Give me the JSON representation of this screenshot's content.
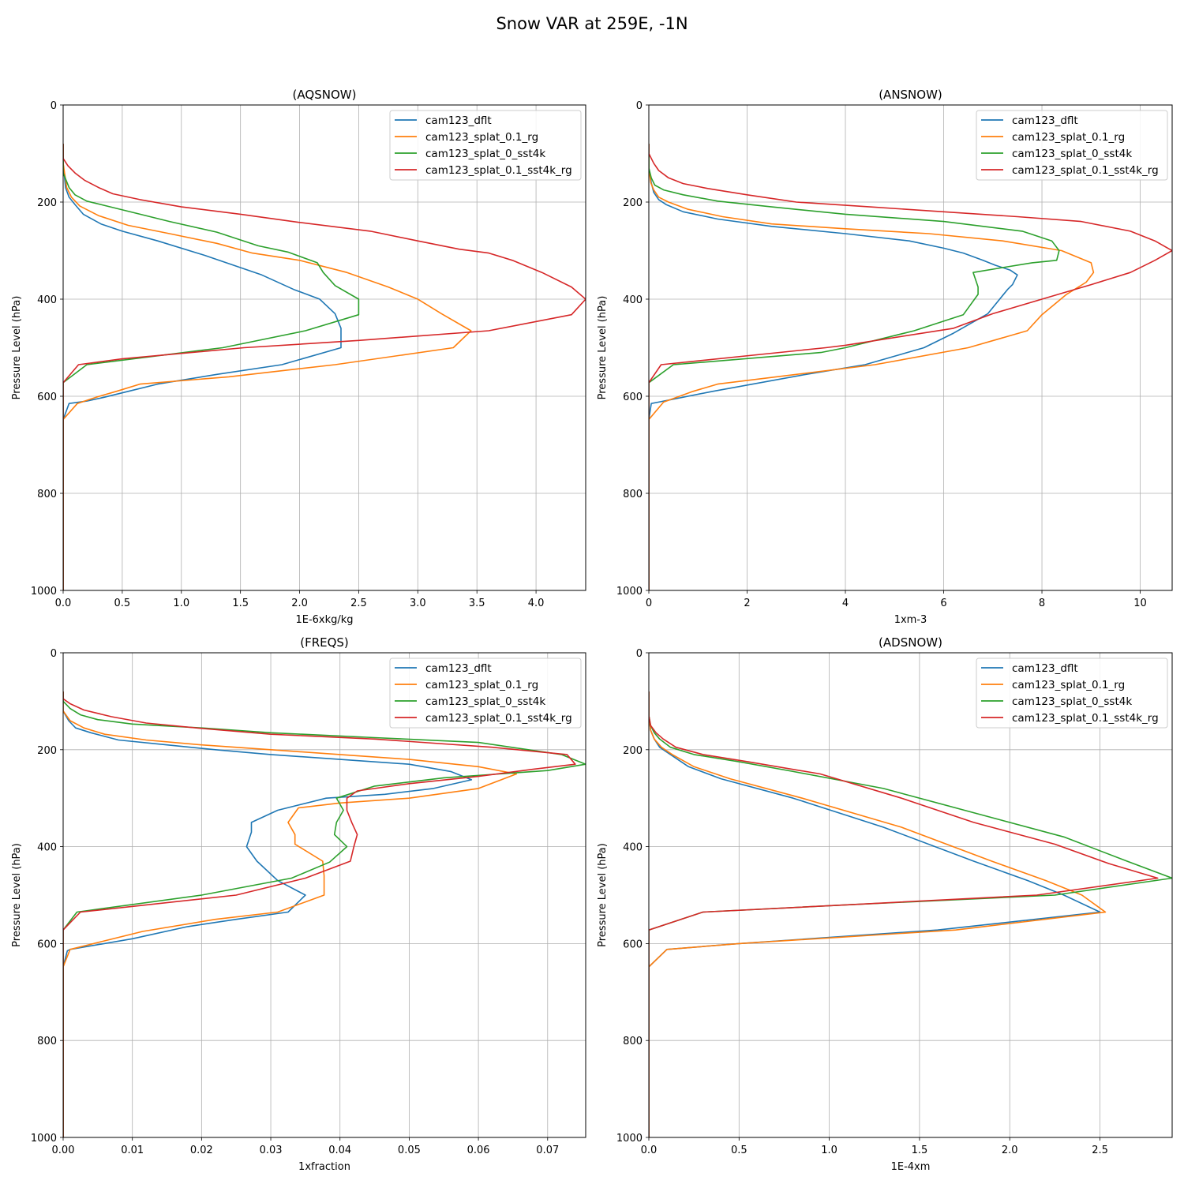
{
  "figure": {
    "title": "Snow VAR at 259E, -1N"
  },
  "chart_data": [
    {
      "type": "line",
      "title": "(AQSNOW)",
      "xlabel": "1E-6xkg/kg",
      "ylabel": "Pressure Level (hPa)",
      "xlim": [
        0,
        4.42
      ],
      "ylim": [
        1000,
        0
      ],
      "y_inverted": true,
      "xticks": [
        "0.0",
        "0.5",
        "1.0",
        "1.5",
        "2.0",
        "2.5",
        "3.0",
        "3.5",
        "4.0"
      ],
      "yticks": [
        "0",
        "200",
        "400",
        "600",
        "800",
        "1000"
      ],
      "grid": true,
      "legend": "top-right",
      "series": [
        {
          "name": "cam123_dflt",
          "color": "#1f77b4",
          "x": [
            0,
            0,
            0.02,
            0.05,
            0.1,
            0.17,
            0.32,
            0.5,
            0.8,
            1.2,
            1.68,
            1.95,
            2.17,
            2.3,
            2.35,
            2.35,
            2.35,
            1.85,
            1.3,
            0.8,
            0.55,
            0.35,
            0.2,
            0.05,
            0,
            0
          ],
          "y": [
            80,
            120,
            170,
            190,
            205,
            225,
            245,
            260,
            280,
            310,
            350,
            380,
            400,
            430,
            460,
            480,
            500,
            535,
            555,
            575,
            590,
            602,
            610,
            615,
            648,
            1000
          ]
        },
        {
          "name": "cam123_splat_0.1_rg",
          "color": "#ff7f0e",
          "x": [
            0,
            0,
            0.03,
            0.07,
            0.14,
            0.3,
            0.55,
            0.9,
            1.3,
            1.6,
            2.0,
            2.4,
            2.75,
            3.0,
            3.2,
            3.45,
            3.3,
            2.3,
            1.4,
            0.65,
            0.45,
            0.28,
            0.12,
            0,
            0
          ],
          "y": [
            80,
            120,
            170,
            190,
            208,
            228,
            248,
            265,
            285,
            305,
            320,
            345,
            375,
            400,
            430,
            465,
            500,
            535,
            560,
            575,
            590,
            602,
            615,
            648,
            1000
          ]
        },
        {
          "name": "cam123_splat_0_sst4k",
          "color": "#2ca02c",
          "x": [
            0,
            0,
            0.05,
            0.1,
            0.2,
            0.4,
            0.6,
            0.9,
            1.3,
            1.65,
            1.9,
            2.15,
            2.2,
            2.3,
            2.5,
            2.5,
            2.05,
            1.35,
            0.95,
            0.2,
            0,
            0
          ],
          "y": [
            80,
            140,
            170,
            185,
            198,
            210,
            222,
            240,
            262,
            290,
            303,
            325,
            345,
            372,
            400,
            432,
            465,
            500,
            512,
            535,
            572,
            1000
          ]
        },
        {
          "name": "cam123_splat_0.1_sst4k_rg",
          "color": "#d62728",
          "x": [
            0,
            0,
            0.04,
            0.1,
            0.18,
            0.3,
            0.42,
            0.65,
            1.0,
            1.5,
            2.0,
            2.6,
            3.0,
            3.35,
            3.6,
            3.8,
            4.05,
            4.3,
            4.42,
            4.3,
            3.6,
            2.5,
            1.53,
            0.5,
            0.13,
            0,
            0
          ],
          "y": [
            80,
            110,
            125,
            140,
            155,
            170,
            183,
            195,
            210,
            225,
            242,
            260,
            280,
            297,
            305,
            320,
            345,
            375,
            400,
            432,
            465,
            485,
            500,
            523,
            535,
            572,
            1000
          ]
        }
      ]
    },
    {
      "type": "line",
      "title": "(ANSNOW)",
      "xlabel": "1xm-3",
      "ylabel": "Pressure Level (hPa)",
      "xlim": [
        0,
        10.65
      ],
      "ylim": [
        1000,
        0
      ],
      "y_inverted": true,
      "xticks": [
        "0",
        "2",
        "4",
        "6",
        "8",
        "10"
      ],
      "yticks": [
        "0",
        "200",
        "400",
        "600",
        "800",
        "1000"
      ],
      "grid": true,
      "legend": "top-right",
      "series": [
        {
          "name": "cam123_dflt",
          "color": "#1f77b4",
          "x": [
            0,
            0,
            0.05,
            0.1,
            0.2,
            0.35,
            0.7,
            1.4,
            2.5,
            4.0,
            5.3,
            6.0,
            6.4,
            6.8,
            7.05,
            7.35,
            7.5,
            7.4,
            7.3,
            6.9,
            6.2,
            5.6,
            4.4,
            3.2,
            1.3,
            0.2,
            0.05,
            0,
            0
          ],
          "y": [
            80,
            130,
            160,
            180,
            195,
            205,
            220,
            235,
            250,
            265,
            280,
            295,
            305,
            320,
            330,
            340,
            350,
            370,
            380,
            430,
            470,
            500,
            535,
            555,
            590,
            612,
            615,
            648,
            1000
          ]
        },
        {
          "name": "cam123_splat_0.1_rg",
          "color": "#ff7f0e",
          "x": [
            0,
            0,
            0.04,
            0.1,
            0.2,
            0.4,
            0.8,
            1.5,
            2.5,
            4.0,
            5.7,
            7.2,
            8.4,
            9.0,
            9.05,
            8.9,
            8.5,
            8.0,
            7.7,
            6.5,
            4.6,
            1.4,
            0.9,
            0.3,
            0,
            0
          ],
          "y": [
            80,
            130,
            160,
            175,
            190,
            200,
            215,
            230,
            245,
            255,
            265,
            280,
            300,
            325,
            345,
            365,
            390,
            432,
            465,
            500,
            535,
            575,
            590,
            612,
            648,
            1000
          ]
        },
        {
          "name": "cam123_splat_0_sst4k",
          "color": "#2ca02c",
          "x": [
            0,
            0,
            0.05,
            0.12,
            0.3,
            0.7,
            1.4,
            2.5,
            4.0,
            6.0,
            7.6,
            8.2,
            8.35,
            8.3,
            7.8,
            7.2,
            6.6,
            6.7,
            6.7,
            6.4,
            5.4,
            4.0,
            3.5,
            0.5,
            0,
            0
          ],
          "y": [
            80,
            130,
            150,
            165,
            175,
            185,
            198,
            210,
            225,
            240,
            260,
            280,
            300,
            320,
            325,
            335,
            345,
            375,
            390,
            432,
            465,
            500,
            510,
            535,
            572,
            1000
          ]
        },
        {
          "name": "cam123_splat_0.1_sst4k_rg",
          "color": "#d62728",
          "x": [
            0,
            0,
            0.1,
            0.2,
            0.4,
            0.7,
            1.2,
            2.0,
            3.0,
            4.5,
            6.0,
            7.5,
            8.8,
            9.8,
            10.3,
            10.65,
            10.3,
            9.8,
            9.0,
            8.0,
            7.0,
            6.2,
            4.0,
            3.6,
            0.25,
            0,
            0
          ],
          "y": [
            80,
            100,
            120,
            135,
            150,
            162,
            172,
            185,
            200,
            210,
            220,
            230,
            240,
            260,
            280,
            300,
            320,
            345,
            370,
            400,
            430,
            460,
            495,
            500,
            535,
            572,
            1000
          ]
        }
      ]
    },
    {
      "type": "line",
      "title": "(FREQS)",
      "xlabel": "1xfraction",
      "ylabel": "Pressure Level (hPa)",
      "xlim": [
        0,
        0.0755
      ],
      "ylim": [
        1000,
        0
      ],
      "y_inverted": true,
      "xticks": [
        "0.00",
        "0.01",
        "0.02",
        "0.03",
        "0.04",
        "0.05",
        "0.06",
        "0.07"
      ],
      "yticks": [
        "0",
        "200",
        "400",
        "600",
        "800",
        "1000"
      ],
      "grid": true,
      "legend": "top-right",
      "series": [
        {
          "name": "cam123_dflt",
          "color": "#1f77b4",
          "x": [
            0,
            0,
            0.0008,
            0.0018,
            0.004,
            0.008,
            0.015,
            0.022,
            0.03,
            0.04,
            0.05,
            0.056,
            0.059,
            0.0535,
            0.0465,
            0.038,
            0.031,
            0.0272,
            0.0272,
            0.0265,
            0.028,
            0.031,
            0.035,
            0.0325,
            0.025,
            0.018,
            0.01,
            0.001,
            0.0006,
            0,
            0
          ],
          "y": [
            80,
            120,
            140,
            155,
            165,
            180,
            190,
            200,
            210,
            220,
            230,
            245,
            262,
            280,
            292,
            300,
            325,
            350,
            370,
            400,
            430,
            470,
            500,
            535,
            550,
            565,
            590,
            612,
            615,
            648,
            1000
          ]
        },
        {
          "name": "cam123_splat_0.1_rg",
          "color": "#ff7f0e",
          "x": [
            0,
            0,
            0.001,
            0.003,
            0.006,
            0.012,
            0.02,
            0.03,
            0.04,
            0.05,
            0.06,
            0.0655,
            0.06,
            0.05,
            0.04,
            0.034,
            0.0325,
            0.0335,
            0.0335,
            0.0375,
            0.0377,
            0.0377,
            0.031,
            0.022,
            0.0115,
            0.001,
            0,
            0
          ],
          "y": [
            80,
            120,
            140,
            155,
            168,
            180,
            190,
            200,
            210,
            220,
            235,
            250,
            280,
            300,
            310,
            320,
            350,
            375,
            395,
            430,
            460,
            500,
            535,
            550,
            575,
            612,
            648,
            1000
          ]
        },
        {
          "name": "cam123_splat_0_sst4k",
          "color": "#2ca02c",
          "x": [
            0,
            0,
            0.001,
            0.0025,
            0.005,
            0.01,
            0.02,
            0.03,
            0.045,
            0.06,
            0.072,
            0.0755,
            0.07,
            0.055,
            0.045,
            0.0395,
            0.0405,
            0.0395,
            0.0392,
            0.041,
            0.0385,
            0.033,
            0.02,
            0.002,
            0,
            0
          ],
          "y": [
            80,
            100,
            115,
            128,
            138,
            147,
            155,
            165,
            175,
            185,
            210,
            230,
            243,
            258,
            275,
            300,
            325,
            350,
            375,
            400,
            432,
            465,
            500,
            535,
            572,
            1000
          ]
        },
        {
          "name": "cam123_splat_0.1_sst4k_rg",
          "color": "#d62728",
          "x": [
            0,
            0,
            0.001,
            0.003,
            0.007,
            0.012,
            0.02,
            0.03,
            0.045,
            0.062,
            0.0728,
            0.074,
            0.068,
            0.06,
            0.05,
            0.0425,
            0.041,
            0.041,
            0.0417,
            0.0425,
            0.042,
            0.0415,
            0.035,
            0.025,
            0.0025,
            0,
            0
          ],
          "y": [
            80,
            95,
            105,
            118,
            132,
            145,
            156,
            168,
            178,
            195,
            210,
            230,
            240,
            255,
            270,
            285,
            300,
            325,
            350,
            375,
            400,
            430,
            465,
            500,
            535,
            572,
            1000
          ]
        }
      ]
    },
    {
      "type": "line",
      "title": "(ADSNOW)",
      "xlabel": "1E-4xm",
      "ylabel": "Pressure Level (hPa)",
      "xlim": [
        0,
        2.9
      ],
      "ylim": [
        1000,
        0
      ],
      "y_inverted": true,
      "xticks": [
        "0.0",
        "0.5",
        "1.0",
        "1.5",
        "2.0",
        "2.5"
      ],
      "yticks": [
        "0",
        "200",
        "400",
        "600",
        "800",
        "1000"
      ],
      "grid": true,
      "legend": "top-right",
      "series": [
        {
          "name": "cam123_dflt",
          "color": "#1f77b4",
          "x": [
            0,
            0,
            0.01,
            0.03,
            0.06,
            0.12,
            0.22,
            0.4,
            0.8,
            1.3,
            1.8,
            2.1,
            2.3,
            2.5,
            1.6,
            0.5,
            0.1,
            0,
            0
          ],
          "y": [
            80,
            130,
            160,
            178,
            195,
            210,
            235,
            260,
            300,
            360,
            430,
            470,
            500,
            535,
            572,
            600,
            612,
            648,
            1000
          ]
        },
        {
          "name": "cam123_splat_0.1_rg",
          "color": "#ff7f0e",
          "x": [
            0,
            0,
            0.01,
            0.03,
            0.07,
            0.13,
            0.25,
            0.45,
            0.85,
            1.4,
            1.9,
            2.2,
            2.4,
            2.53,
            1.7,
            0.5,
            0.1,
            0,
            0
          ],
          "y": [
            80,
            130,
            160,
            178,
            195,
            210,
            235,
            260,
            300,
            360,
            430,
            470,
            500,
            535,
            572,
            600,
            612,
            648,
            1000
          ]
        },
        {
          "name": "cam123_splat_0_sst4k",
          "color": "#2ca02c",
          "x": [
            0,
            0,
            0.01,
            0.03,
            0.06,
            0.12,
            0.25,
            0.5,
            0.8,
            1.3,
            1.8,
            2.3,
            2.65,
            2.9,
            2.25,
            1.1,
            0.3,
            0,
            0
          ],
          "y": [
            80,
            130,
            150,
            165,
            178,
            195,
            210,
            225,
            245,
            280,
            330,
            380,
            430,
            465,
            500,
            520,
            535,
            572,
            1000
          ]
        },
        {
          "name": "cam123_splat_0.1_sst4k_rg",
          "color": "#d62728",
          "x": [
            0,
            0,
            0.01,
            0.04,
            0.08,
            0.15,
            0.3,
            0.55,
            0.95,
            1.4,
            1.8,
            2.25,
            2.55,
            2.82,
            2.15,
            1.1,
            0.3,
            0,
            0
          ],
          "y": [
            80,
            130,
            150,
            165,
            178,
            195,
            210,
            225,
            250,
            300,
            350,
            395,
            435,
            465,
            500,
            520,
            535,
            572,
            1000
          ]
        }
      ]
    }
  ]
}
